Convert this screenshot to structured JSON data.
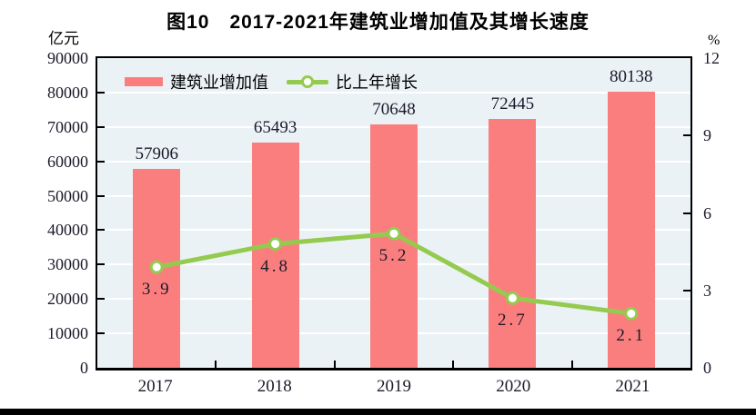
{
  "chart_data": {
    "type": "bar",
    "title": "图10　2017-2021年建筑业增加值及其增长速度",
    "categories": [
      "2017",
      "2018",
      "2019",
      "2020",
      "2021"
    ],
    "series": [
      {
        "name": "建筑业增加值",
        "type": "bar",
        "axis": "left",
        "values": [
          57906,
          65493,
          70648,
          72445,
          80138
        ],
        "color": "#FB7E7E"
      },
      {
        "name": "比上年增长",
        "type": "line",
        "axis": "right",
        "values": [
          3.9,
          4.8,
          5.2,
          2.7,
          2.1
        ],
        "color": "#94CB4F",
        "marker": "circle-white-fill"
      }
    ],
    "left_axis": {
      "unit": "亿元",
      "min": 0,
      "max": 90000,
      "step": 10000,
      "tick_labels": [
        "0",
        "10000",
        "20000",
        "30000",
        "40000",
        "50000",
        "60000",
        "70000",
        "80000",
        "90000"
      ]
    },
    "right_axis": {
      "unit": "%",
      "min": 0,
      "max": 12,
      "step": 3,
      "tick_labels": [
        "0",
        "3",
        "6",
        "9",
        "12"
      ]
    },
    "legend": {
      "position": "top-left-inside",
      "items": [
        "建筑业增加值",
        "比上年增长"
      ]
    },
    "plot_style": {
      "background": "#EBF2F6",
      "grid_color": "#FFFFFF",
      "frame_color": "#000000",
      "grid": "horizontal"
    }
  }
}
